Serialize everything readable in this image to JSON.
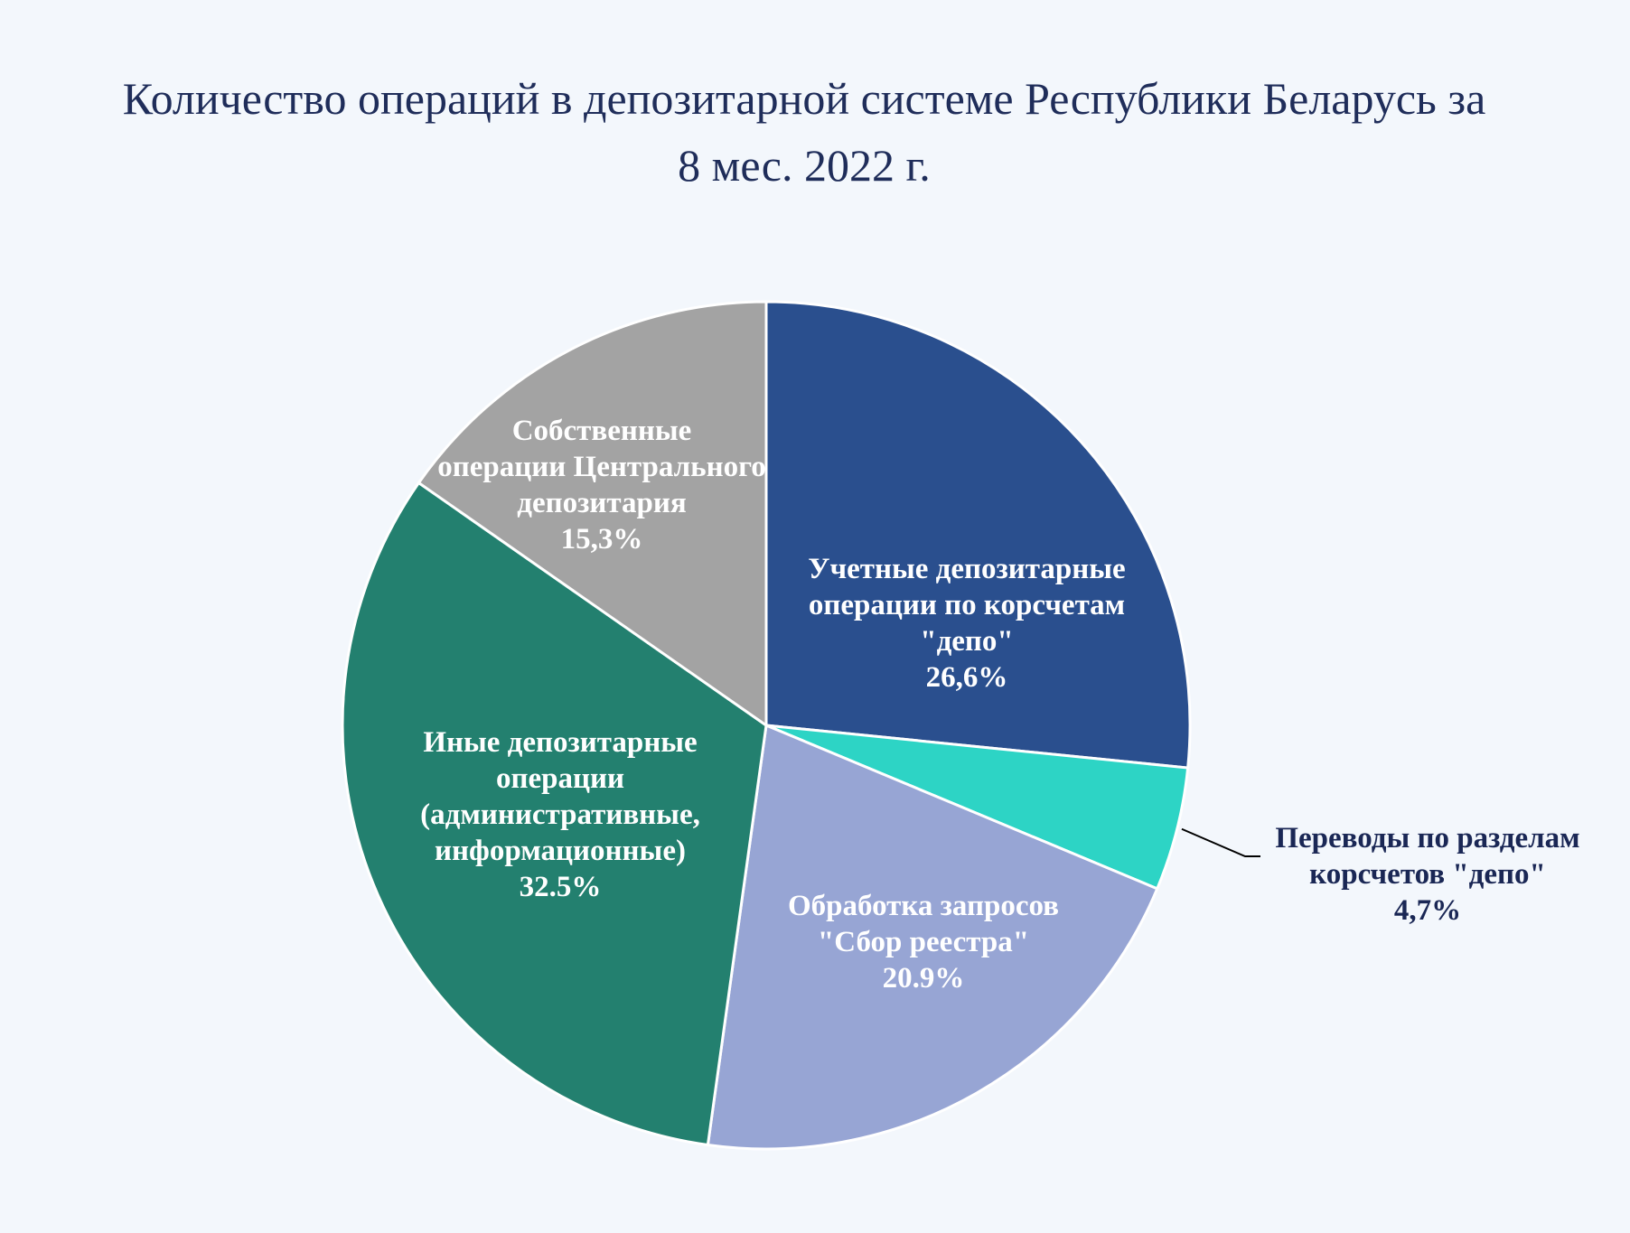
{
  "title": {
    "line1": "Количество операций в депозитарной системе Республики Беларусь за",
    "line2": "8 мес. 2022 г."
  },
  "chart_data": {
    "type": "pie",
    "title": "Количество операций в депозитарной системе Республики Беларусь за 8 мес. 2022 г.",
    "slices": [
      {
        "name": "Учетные депозитарные операции по корсчетам \"депо\"",
        "label_lines": [
          "Учетные депозитарные",
          "операции по корсчетам",
          "\"депо\""
        ],
        "value": 26.6,
        "value_label": "26,6%",
        "color": "#2a4f8e",
        "text_color": "#ffffff"
      },
      {
        "name": "Переводы по разделам корсчетов \"депо\"",
        "label_lines": [
          "Переводы по разделам",
          "корсчетов \"депо\""
        ],
        "value": 4.7,
        "value_label": "4,7%",
        "color": "#2dd4c5",
        "text_color": "#1a2755",
        "outside": true
      },
      {
        "name": "Обработка запросов \"Сбор реестра\"",
        "label_lines": [
          "Обработка запросов",
          "\"Сбор реестра\""
        ],
        "value": 20.9,
        "value_label": "20.9%",
        "color": "#97a5d4",
        "text_color": "#ffffff"
      },
      {
        "name": "Иные депозитарные операции (административные, информационные)",
        "label_lines": [
          "Иные депозитарные",
          "операции",
          "(административные,",
          "информационные)"
        ],
        "value": 32.5,
        "value_label": "32.5%",
        "color": "#23806f",
        "text_color": "#ffffff"
      },
      {
        "name": "Собственные операции Центрального депозитария",
        "label_lines": [
          "Собственные",
          "операции Центрального",
          "депозитария"
        ],
        "value": 15.3,
        "value_label": "15,3%",
        "color": "#a3a3a3",
        "text_color": "#ffffff"
      }
    ],
    "start_angle": "12 o'clock",
    "direction": "clockwise",
    "legend": "none (data labels on slices)"
  }
}
